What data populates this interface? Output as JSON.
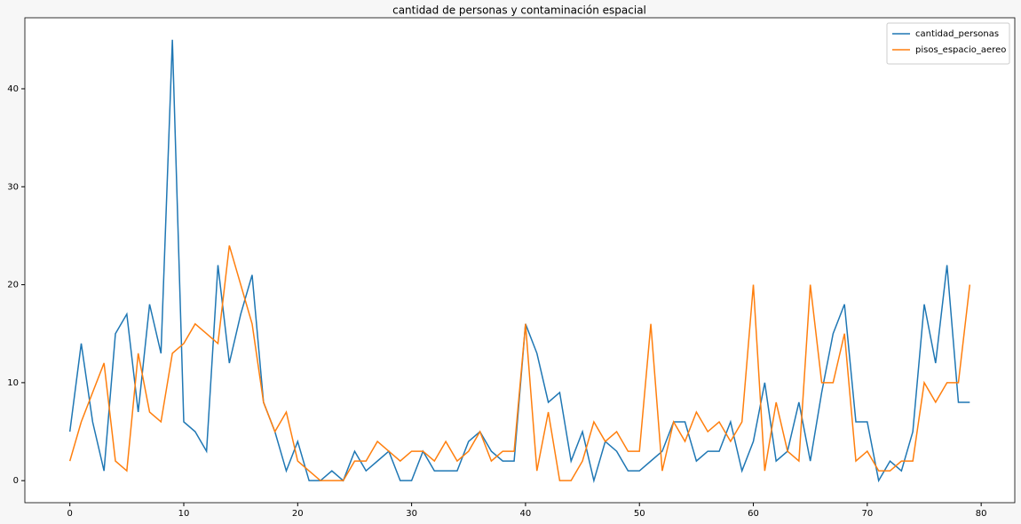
{
  "chart_data": {
    "type": "line",
    "title": "cantidad de personas y contaminación espacial",
    "x": [
      0,
      1,
      2,
      3,
      4,
      5,
      6,
      7,
      8,
      9,
      10,
      11,
      12,
      13,
      14,
      15,
      16,
      17,
      18,
      19,
      20,
      21,
      22,
      23,
      24,
      25,
      26,
      27,
      28,
      29,
      30,
      31,
      32,
      33,
      34,
      35,
      36,
      37,
      38,
      39,
      40,
      41,
      42,
      43,
      44,
      45,
      46,
      47,
      48,
      49,
      50,
      51,
      52,
      53,
      54,
      55,
      56,
      57,
      58,
      59,
      60,
      61,
      62,
      63,
      64,
      65,
      66,
      67,
      68,
      69,
      70,
      71,
      72,
      73,
      74,
      75,
      76,
      77,
      78,
      79
    ],
    "series": [
      {
        "name": "cantidad_personas",
        "color": "#1f77b4",
        "values": [
          5,
          14,
          6,
          1,
          15,
          17,
          7,
          18,
          13,
          45,
          6,
          5,
          3,
          22,
          12,
          17,
          21,
          8,
          5,
          1,
          4,
          0,
          0,
          1,
          0,
          3,
          1,
          2,
          3,
          0,
          0,
          3,
          1,
          1,
          1,
          4,
          5,
          3,
          2,
          2,
          16,
          13,
          8,
          9,
          2,
          5,
          0,
          4,
          3,
          1,
          1,
          2,
          3,
          6,
          6,
          2,
          3,
          3,
          6,
          1,
          4,
          10,
          2,
          3,
          8,
          2,
          9,
          15,
          18,
          6,
          6,
          0,
          2,
          1,
          5,
          18,
          12,
          22,
          8,
          8
        ]
      },
      {
        "name": "pisos_espacio_aereo",
        "color": "#ff7f0e",
        "values": [
          2,
          6,
          9,
          12,
          2,
          1,
          13,
          7,
          6,
          13,
          14,
          16,
          15,
          14,
          24,
          20,
          16,
          8,
          5,
          7,
          2,
          1,
          0,
          0,
          0,
          2,
          2,
          4,
          3,
          2,
          3,
          3,
          2,
          4,
          2,
          3,
          5,
          2,
          3,
          3,
          16,
          1,
          7,
          0,
          0,
          2,
          6,
          4,
          5,
          3,
          3,
          16,
          1,
          6,
          4,
          7,
          5,
          6,
          4,
          6,
          20,
          1,
          8,
          3,
          2,
          20,
          10,
          10,
          15,
          2,
          3,
          1,
          1,
          2,
          2,
          10,
          8,
          10,
          10,
          20
        ]
      }
    ],
    "xlim": [
      -3.95,
      82.95
    ],
    "ylim": [
      -2.25,
      47.25
    ],
    "xticks": [
      0,
      10,
      20,
      30,
      40,
      50,
      60,
      70,
      80
    ],
    "yticks": [
      0,
      10,
      20,
      30,
      40
    ],
    "legend": "upper right"
  }
}
